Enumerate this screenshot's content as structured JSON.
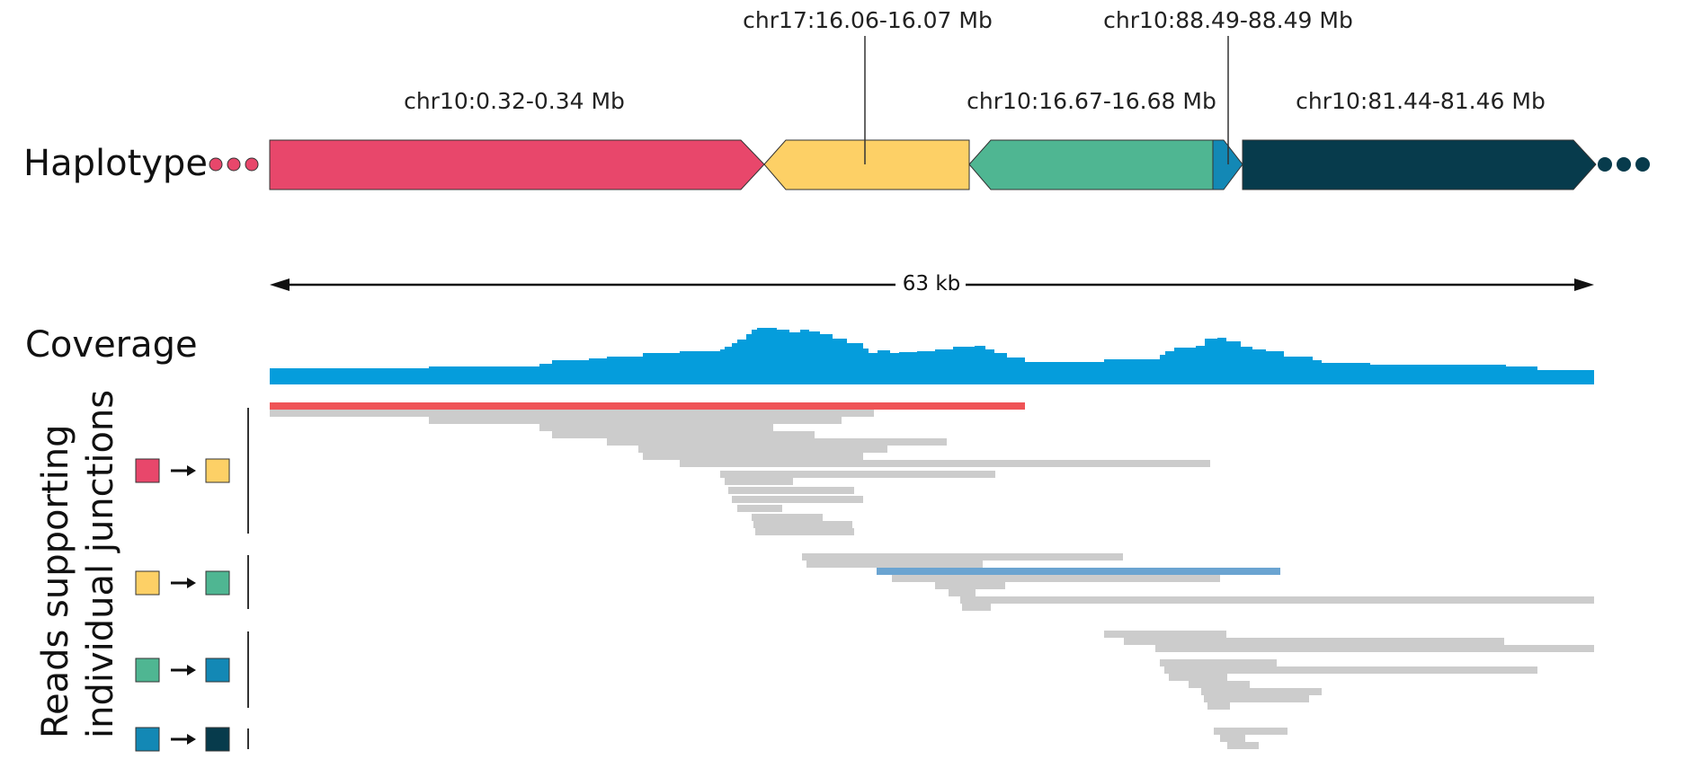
{
  "labels": {
    "haplotype": "Haplotype",
    "coverage": "Coverage",
    "reads_line1": "Reads supporting",
    "reads_line2": "individual junctions"
  },
  "scale_bar": {
    "text": "63 kb"
  },
  "segments": [
    {
      "label": "chr10:0.32-0.34 Mb",
      "color": "#E8476B",
      "direction": "forward"
    },
    {
      "label": "chr17:16.06-16.07 Mb",
      "color": "#FDD066",
      "direction": "reverse"
    },
    {
      "label": "chr10:16.67-16.68 Mb",
      "color": "#4FB692",
      "direction": "reverse"
    },
    {
      "label": "chr10:88.49-88.49 Mb",
      "color": "#1388B5",
      "direction": "forward"
    },
    {
      "label": "chr10:81.44-81.46 Mb",
      "color": "#073B4C",
      "direction": "forward"
    }
  ],
  "colors": {
    "coverage": "#059DDC",
    "read": "#CCCCCC",
    "read_highlight_1": "#EF5356",
    "read_highlight_2": "#6BA4D1",
    "outline": "#333333"
  },
  "junctions": [
    {
      "from": "#E8476B",
      "to": "#FDD066"
    },
    {
      "from": "#FDD066",
      "to": "#4FB692"
    },
    {
      "from": "#4FB692",
      "to": "#1388B5"
    },
    {
      "from": "#1388B5",
      "to": "#073B4C"
    }
  ]
}
